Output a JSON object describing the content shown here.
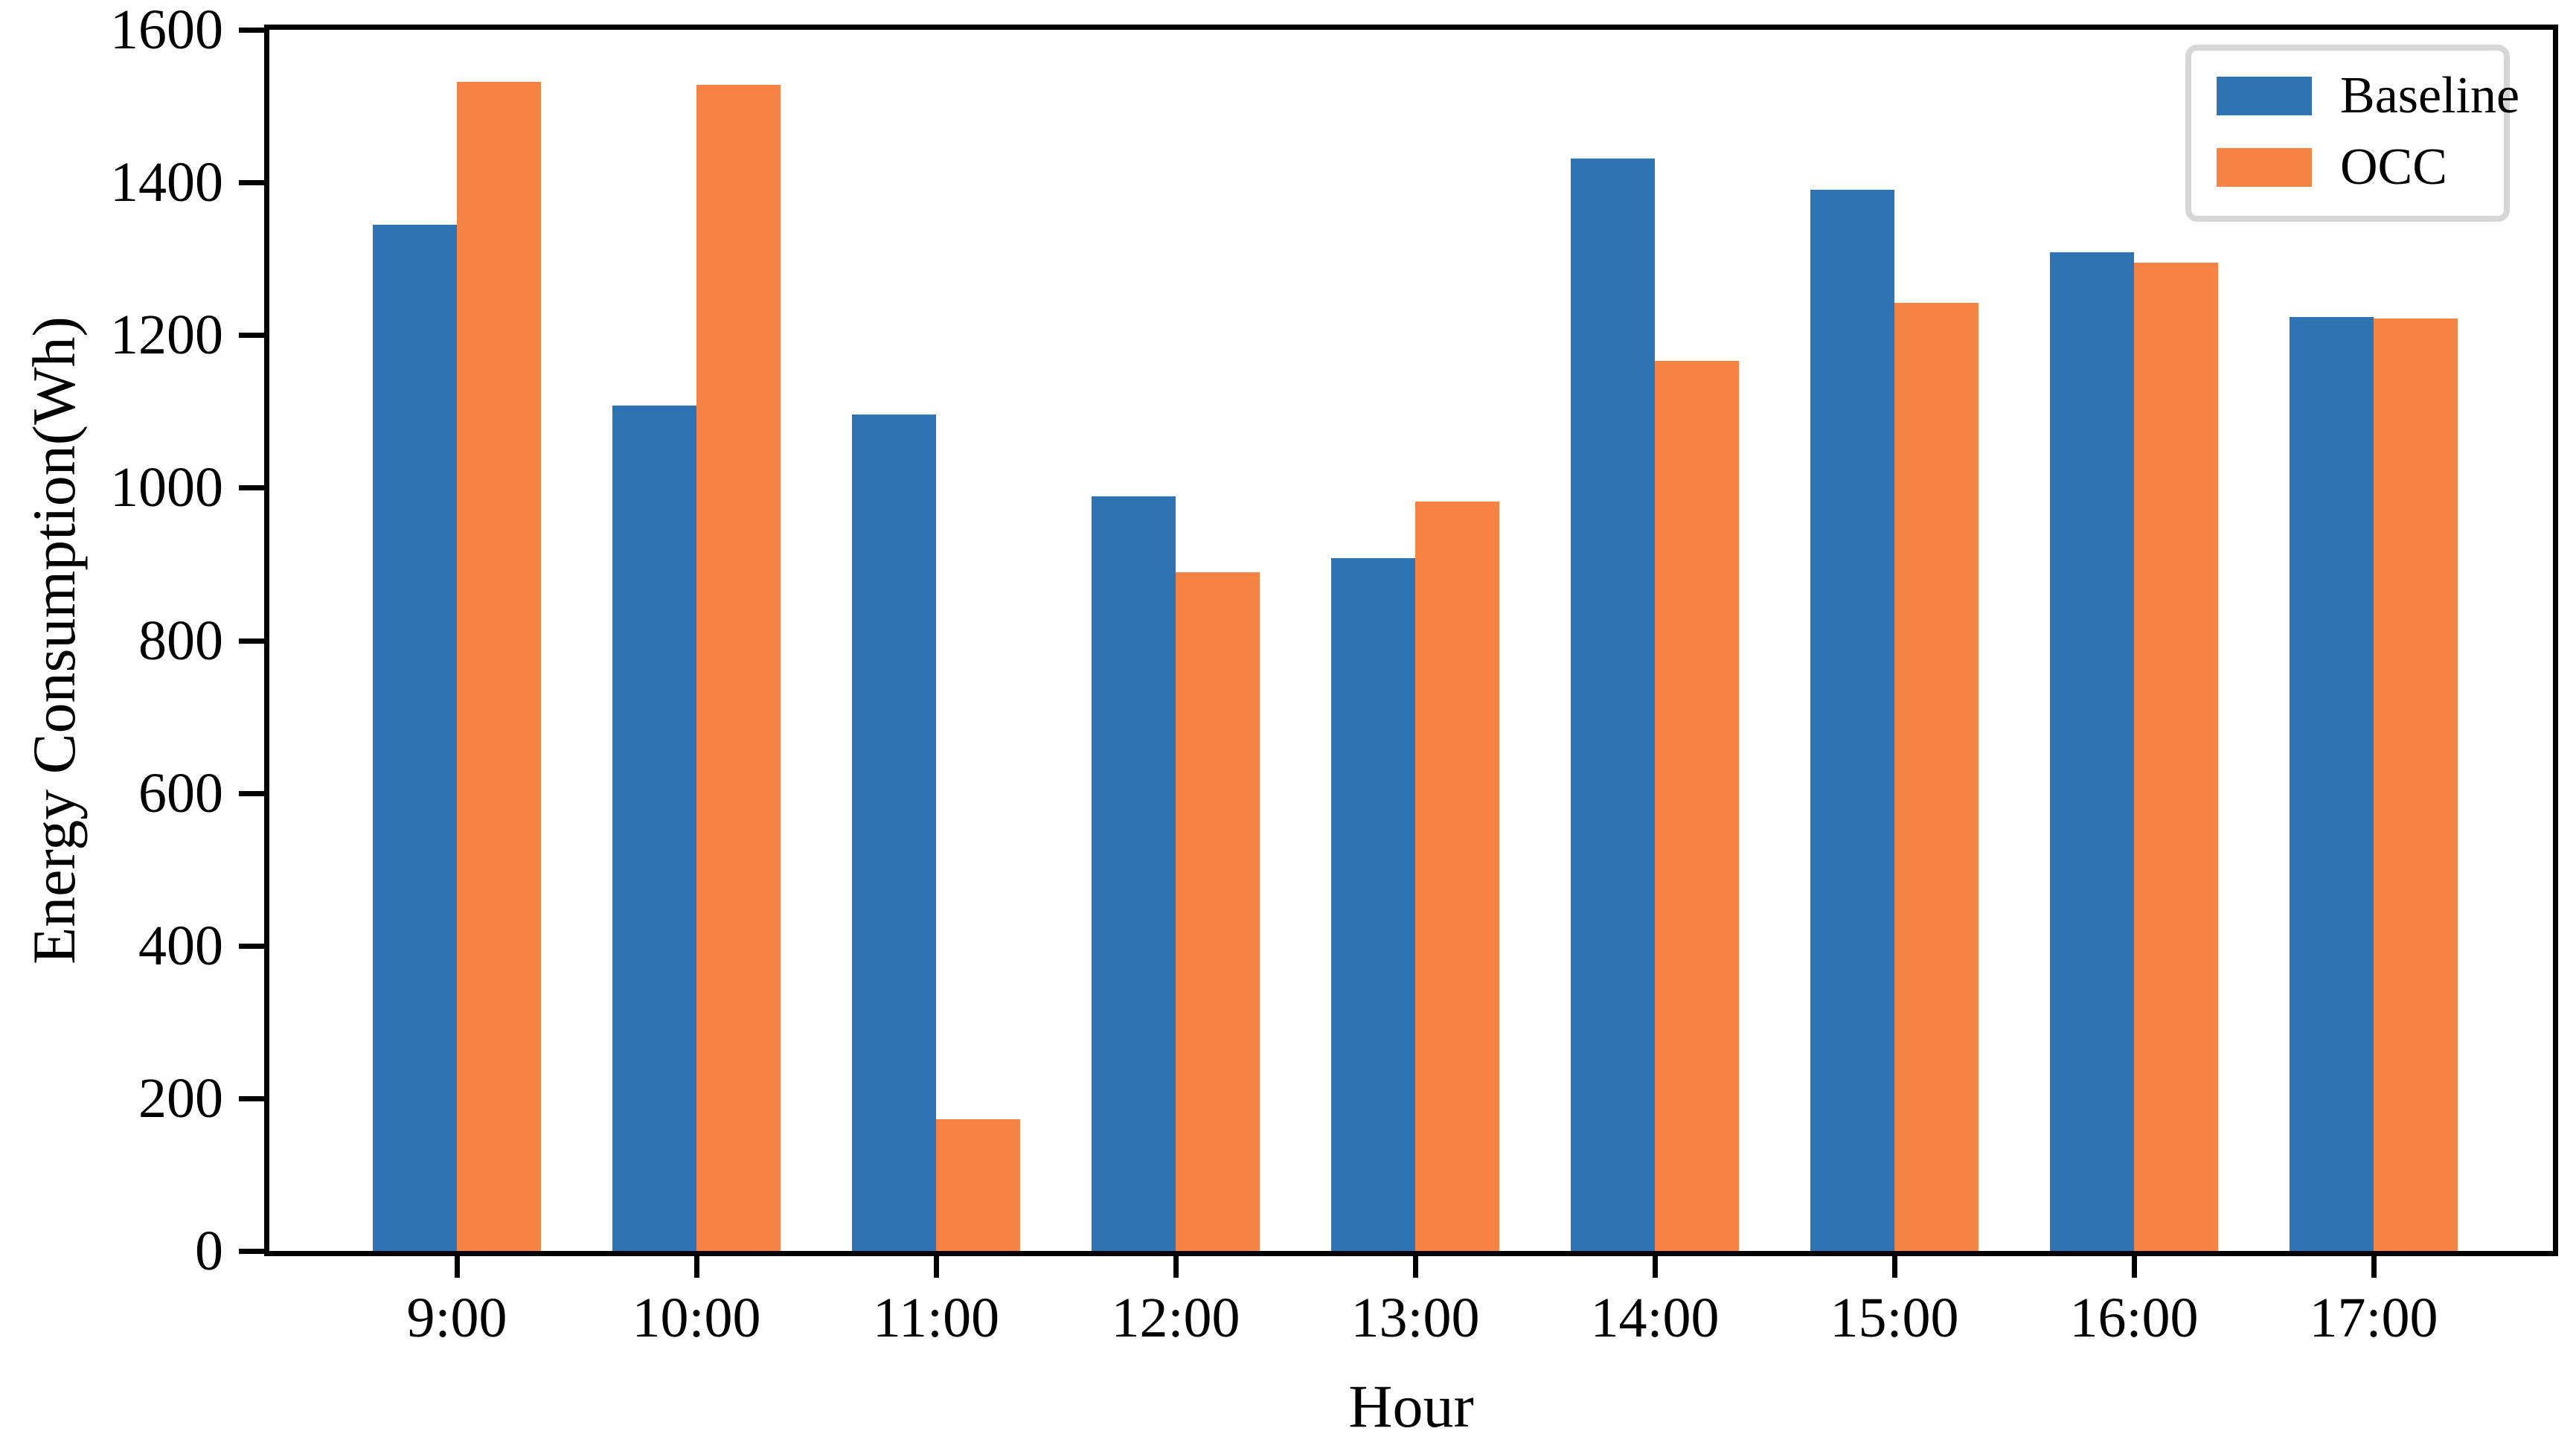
{
  "figure": {
    "background_color": "#ffffff",
    "axis_color": "#000000",
    "series_colors": {
      "Baseline": "#2e74b5",
      "OCC": "#f58345"
    },
    "legend": {
      "position": "upper-right",
      "border_color": "#d6d6d6",
      "items": [
        {
          "label": "Baseline",
          "color": "#2e74b5"
        },
        {
          "label": "OCC",
          "color": "#f58345"
        }
      ]
    }
  },
  "chart_data": {
    "type": "bar",
    "title": "",
    "xlabel": "Hour",
    "ylabel": "Energy Consumption(Wh)",
    "categories": [
      "9:00",
      "10:00",
      "11:00",
      "12:00",
      "13:00",
      "14:00",
      "15:00",
      "16:00",
      "17:00"
    ],
    "series": [
      {
        "name": "Baseline",
        "values": [
          1345,
          1108,
          1096,
          989,
          908,
          1431,
          1390,
          1308,
          1224
        ]
      },
      {
        "name": "OCC",
        "values": [
          1532,
          1528,
          173,
          889,
          982,
          1166,
          1242,
          1295,
          1222
        ]
      }
    ],
    "ylim": [
      0,
      1600
    ],
    "yticks": [
      0,
      200,
      400,
      600,
      800,
      1000,
      1200,
      1400,
      1600
    ],
    "grid": false,
    "legend_position": "upper right"
  }
}
